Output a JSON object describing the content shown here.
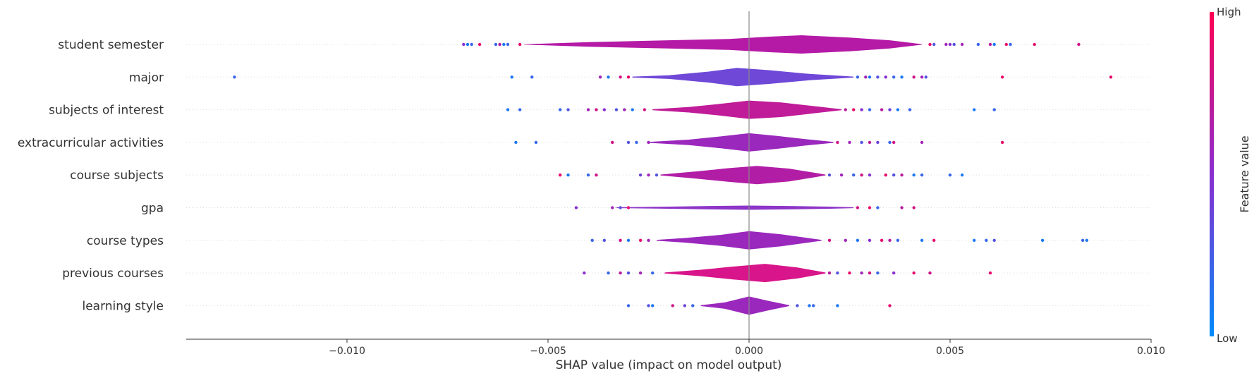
{
  "chart_data": {
    "type": "violin",
    "title": "",
    "xlabel": "SHAP value (impact on model output)",
    "xlim": [
      -0.014,
      0.01
    ],
    "x_ticks": [
      -0.01,
      -0.005,
      0.0,
      0.005,
      0.01
    ],
    "x_tick_labels": [
      "−0.010",
      "−0.005",
      "0.000",
      "0.005",
      "0.010"
    ],
    "colorbar": {
      "label": "Feature value",
      "high_label": "High",
      "low_label": "Low",
      "high_color": "#ff0052",
      "low_color": "#008bfb"
    },
    "features": [
      {
        "name": "student semester",
        "color": "#b51aa6",
        "max_half_width": 13,
        "range": [
          -0.0056,
          0.0043
        ],
        "profile": [
          [
            -0.0056,
            0.02
          ],
          [
            -0.004,
            0.25
          ],
          [
            -0.002,
            0.45
          ],
          [
            -0.0005,
            0.6
          ],
          [
            0.0005,
            0.85
          ],
          [
            0.0013,
            1.0
          ],
          [
            0.0025,
            0.75
          ],
          [
            0.0035,
            0.45
          ],
          [
            0.0043,
            0.03
          ]
        ],
        "points": [
          [
            -0.0071,
            0.5
          ],
          [
            -0.007,
            0.1
          ],
          [
            -0.0069,
            0.2
          ],
          [
            -0.0067,
            0.9
          ],
          [
            -0.0063,
            0.2
          ],
          [
            -0.0062,
            0.7
          ],
          [
            -0.0061,
            0.1
          ],
          [
            -0.006,
            0.2
          ],
          [
            -0.0057,
            0.9
          ],
          [
            0.0045,
            0.9
          ],
          [
            0.0046,
            0.3
          ],
          [
            0.0049,
            0.6
          ],
          [
            0.005,
            0.5
          ],
          [
            0.0051,
            0.3
          ],
          [
            0.0053,
            0.6
          ],
          [
            0.0057,
            0.2
          ],
          [
            0.006,
            0.7
          ],
          [
            0.0061,
            0.1
          ],
          [
            0.0064,
            0.9
          ],
          [
            0.0065,
            0.2
          ],
          [
            0.0071,
            0.9
          ],
          [
            0.0082,
            0.8
          ]
        ]
      },
      {
        "name": "major",
        "color": "#6f48d8",
        "max_half_width": 13,
        "range": [
          -0.0029,
          0.0026
        ],
        "profile": [
          [
            -0.0029,
            0.05
          ],
          [
            -0.002,
            0.2
          ],
          [
            -0.001,
            0.6
          ],
          [
            -0.0003,
            1.0
          ],
          [
            0.0005,
            0.75
          ],
          [
            0.0015,
            0.35
          ],
          [
            0.0026,
            0.05
          ]
        ],
        "points": [
          [
            -0.0128,
            0.2
          ],
          [
            -0.0059,
            0.1
          ],
          [
            -0.0054,
            0.2
          ],
          [
            -0.0037,
            0.6
          ],
          [
            -0.0035,
            0.1
          ],
          [
            -0.0032,
            0.8
          ],
          [
            -0.003,
            0.9
          ],
          [
            0.0027,
            0.2
          ],
          [
            0.0029,
            0.6
          ],
          [
            0.003,
            0.1
          ],
          [
            0.0032,
            0.3
          ],
          [
            0.0034,
            0.5
          ],
          [
            0.0036,
            0.2
          ],
          [
            0.0038,
            0.1
          ],
          [
            0.0041,
            0.8
          ],
          [
            0.0043,
            0.6
          ],
          [
            0.0044,
            0.3
          ],
          [
            0.0063,
            0.9
          ],
          [
            0.009,
            0.9
          ]
        ]
      },
      {
        "name": "subjects of interest",
        "color": "#c01b98",
        "max_half_width": 13,
        "range": [
          -0.0024,
          0.0023
        ],
        "profile": [
          [
            -0.0024,
            0.05
          ],
          [
            -0.0015,
            0.3
          ],
          [
            -0.0008,
            0.6
          ],
          [
            0.0,
            1.0
          ],
          [
            0.0008,
            0.8
          ],
          [
            0.0016,
            0.4
          ],
          [
            0.0023,
            0.05
          ]
        ],
        "points": [
          [
            -0.006,
            0.1
          ],
          [
            -0.0057,
            0.2
          ],
          [
            -0.0047,
            0.2
          ],
          [
            -0.0045,
            0.3
          ],
          [
            -0.004,
            0.6
          ],
          [
            -0.0038,
            0.8
          ],
          [
            -0.0036,
            0.5
          ],
          [
            -0.0033,
            0.3
          ],
          [
            -0.0031,
            0.6
          ],
          [
            -0.0029,
            0.1
          ],
          [
            -0.0026,
            0.8
          ],
          [
            0.0024,
            0.7
          ],
          [
            0.0026,
            0.9
          ],
          [
            0.0028,
            0.5
          ],
          [
            0.003,
            0.2
          ],
          [
            0.0033,
            0.7
          ],
          [
            0.0035,
            0.4
          ],
          [
            0.0037,
            0.1
          ],
          [
            0.004,
            0.2
          ],
          [
            0.0056,
            0.1
          ],
          [
            0.0061,
            0.2
          ]
        ]
      },
      {
        "name": "extracurricular activities",
        "color": "#9a28bd",
        "max_half_width": 13,
        "range": [
          -0.0025,
          0.0021
        ],
        "profile": [
          [
            -0.0025,
            0.05
          ],
          [
            -0.0015,
            0.3
          ],
          [
            -0.0007,
            0.65
          ],
          [
            0.0,
            1.0
          ],
          [
            0.0007,
            0.7
          ],
          [
            0.0014,
            0.35
          ],
          [
            0.0021,
            0.05
          ]
        ],
        "points": [
          [
            -0.0058,
            0.1
          ],
          [
            -0.0053,
            0.2
          ],
          [
            -0.0034,
            0.8
          ],
          [
            -0.003,
            0.3
          ],
          [
            -0.0028,
            0.2
          ],
          [
            -0.0025,
            0.6
          ],
          [
            0.0022,
            0.8
          ],
          [
            0.0025,
            0.6
          ],
          [
            0.0028,
            0.3
          ],
          [
            0.003,
            0.7
          ],
          [
            0.0032,
            0.4
          ],
          [
            0.0035,
            0.2
          ],
          [
            0.0036,
            0.8
          ],
          [
            0.0043,
            0.6
          ],
          [
            0.0063,
            0.9
          ]
        ]
      },
      {
        "name": "course subjects",
        "color": "#b21da6",
        "max_half_width": 13,
        "range": [
          -0.0022,
          0.0019
        ],
        "profile": [
          [
            -0.0022,
            0.05
          ],
          [
            -0.0013,
            0.4
          ],
          [
            -0.0005,
            0.75
          ],
          [
            0.0002,
            1.0
          ],
          [
            0.001,
            0.7
          ],
          [
            0.0019,
            0.05
          ]
        ],
        "points": [
          [
            -0.0047,
            0.9
          ],
          [
            -0.0045,
            0.1
          ],
          [
            -0.004,
            0.2
          ],
          [
            -0.0038,
            0.8
          ],
          [
            -0.0027,
            0.4
          ],
          [
            -0.0025,
            0.6
          ],
          [
            -0.0023,
            0.3
          ],
          [
            0.002,
            0.3
          ],
          [
            0.0023,
            0.6
          ],
          [
            0.0026,
            0.2
          ],
          [
            0.0028,
            0.8
          ],
          [
            0.003,
            0.5
          ],
          [
            0.0034,
            0.9
          ],
          [
            0.0036,
            0.3
          ],
          [
            0.0038,
            0.7
          ],
          [
            0.0041,
            0.1
          ],
          [
            0.0043,
            0.2
          ],
          [
            0.005,
            0.2
          ],
          [
            0.0053,
            0.1
          ]
        ]
      },
      {
        "name": "gpa",
        "color": "#8d35c8",
        "max_half_width": 3,
        "range": [
          -0.0033,
          0.0026
        ],
        "profile": [
          [
            -0.0033,
            0.2
          ],
          [
            -0.002,
            0.5
          ],
          [
            -0.001,
            0.8
          ],
          [
            0.0,
            1.0
          ],
          [
            0.001,
            0.8
          ],
          [
            0.002,
            0.5
          ],
          [
            0.0026,
            0.2
          ]
        ],
        "points": [
          [
            -0.0043,
            0.5
          ],
          [
            -0.0034,
            0.6
          ],
          [
            -0.0032,
            0.3
          ],
          [
            -0.003,
            0.9
          ],
          [
            0.0027,
            0.8
          ],
          [
            0.003,
            0.9
          ],
          [
            0.0032,
            0.2
          ],
          [
            0.0038,
            0.7
          ],
          [
            0.0041,
            0.8
          ]
        ]
      },
      {
        "name": "course types",
        "color": "#9a28bd",
        "max_half_width": 13,
        "range": [
          -0.0023,
          0.0018
        ],
        "profile": [
          [
            -0.0023,
            0.05
          ],
          [
            -0.0016,
            0.25
          ],
          [
            -0.0007,
            0.6
          ],
          [
            0.0,
            1.0
          ],
          [
            0.0008,
            0.65
          ],
          [
            0.0018,
            0.05
          ]
        ],
        "points": [
          [
            -0.0039,
            0.2
          ],
          [
            -0.0036,
            0.3
          ],
          [
            -0.0032,
            0.8
          ],
          [
            -0.003,
            0.1
          ],
          [
            -0.0027,
            0.9
          ],
          [
            -0.0025,
            0.6
          ],
          [
            0.002,
            0.8
          ],
          [
            0.0024,
            0.6
          ],
          [
            0.0027,
            0.1
          ],
          [
            0.003,
            0.5
          ],
          [
            0.0033,
            0.9
          ],
          [
            0.0035,
            0.7
          ],
          [
            0.0037,
            0.2
          ],
          [
            0.0043,
            0.1
          ],
          [
            0.0046,
            0.9
          ],
          [
            0.0056,
            0.1
          ],
          [
            0.0059,
            0.2
          ],
          [
            0.0061,
            0.3
          ],
          [
            0.0073,
            0.1
          ],
          [
            0.0083,
            0.2
          ],
          [
            0.0084,
            0.1
          ]
        ]
      },
      {
        "name": "previous courses",
        "color": "#d8158a",
        "max_half_width": 13,
        "range": [
          -0.0021,
          0.0019
        ],
        "profile": [
          [
            -0.0021,
            0.05
          ],
          [
            -0.0012,
            0.35
          ],
          [
            -0.0004,
            0.7
          ],
          [
            0.0004,
            1.0
          ],
          [
            0.0012,
            0.6
          ],
          [
            0.0019,
            0.05
          ]
        ],
        "points": [
          [
            -0.0041,
            0.5
          ],
          [
            -0.0035,
            0.2
          ],
          [
            -0.0032,
            0.7
          ],
          [
            -0.003,
            0.3
          ],
          [
            -0.0027,
            0.6
          ],
          [
            -0.0024,
            0.2
          ],
          [
            0.002,
            0.7
          ],
          [
            0.0022,
            0.3
          ],
          [
            0.0025,
            0.9
          ],
          [
            0.0028,
            0.6
          ],
          [
            0.003,
            0.8
          ],
          [
            0.0032,
            0.2
          ],
          [
            0.0036,
            0.5
          ],
          [
            0.0041,
            0.9
          ],
          [
            0.0045,
            0.8
          ],
          [
            0.006,
            0.9
          ]
        ]
      },
      {
        "name": "learning style",
        "color": "#9a28bd",
        "max_half_width": 13,
        "range": [
          -0.0012,
          0.001
        ],
        "profile": [
          [
            -0.0012,
            0.05
          ],
          [
            -0.0006,
            0.35
          ],
          [
            0.0,
            1.0
          ],
          [
            0.0005,
            0.5
          ],
          [
            0.001,
            0.05
          ]
        ],
        "points": [
          [
            -0.003,
            0.2
          ],
          [
            -0.0025,
            0.3
          ],
          [
            -0.0024,
            0.1
          ],
          [
            -0.0019,
            0.8
          ],
          [
            -0.0016,
            0.4
          ],
          [
            -0.0014,
            0.2
          ],
          [
            0.0012,
            0.3
          ],
          [
            0.0015,
            0.1
          ],
          [
            0.0016,
            0.2
          ],
          [
            0.0022,
            0.1
          ],
          [
            0.0035,
            0.9
          ]
        ]
      }
    ]
  }
}
